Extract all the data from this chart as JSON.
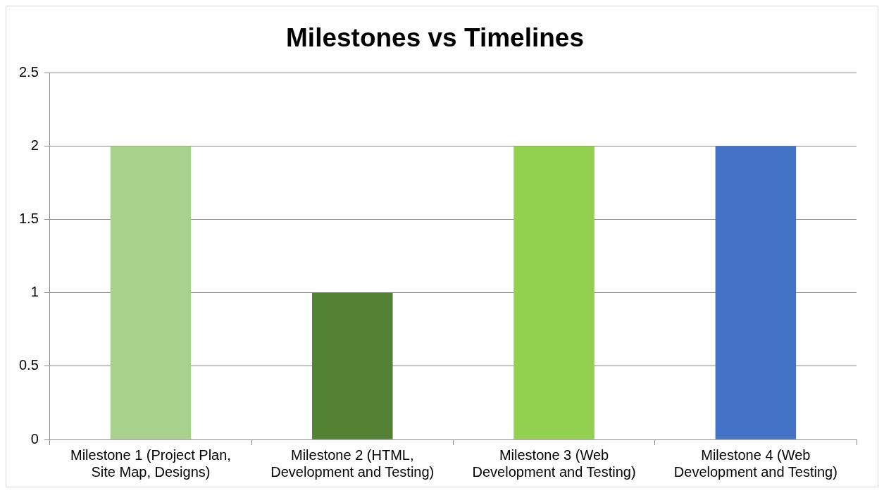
{
  "chart_data": {
    "type": "bar",
    "title": "Milestones vs Timelines",
    "categories": [
      "Milestone 1 (Project Plan, Site Map, Designs)",
      "Milestone 2 (HTML, Development and Testing)",
      "Milestone 3 (Web Development and Testing)",
      "Milestone 4 (Web Development and Testing)"
    ],
    "values": [
      2,
      1,
      2,
      2
    ],
    "colors": [
      "#a9d18e",
      "#548235",
      "#92d050",
      "#4472c4"
    ],
    "ylim": [
      0,
      2.5
    ],
    "yticks": [
      0,
      0.5,
      1,
      1.5,
      2,
      2.5
    ],
    "grid": "y",
    "legend": false
  }
}
